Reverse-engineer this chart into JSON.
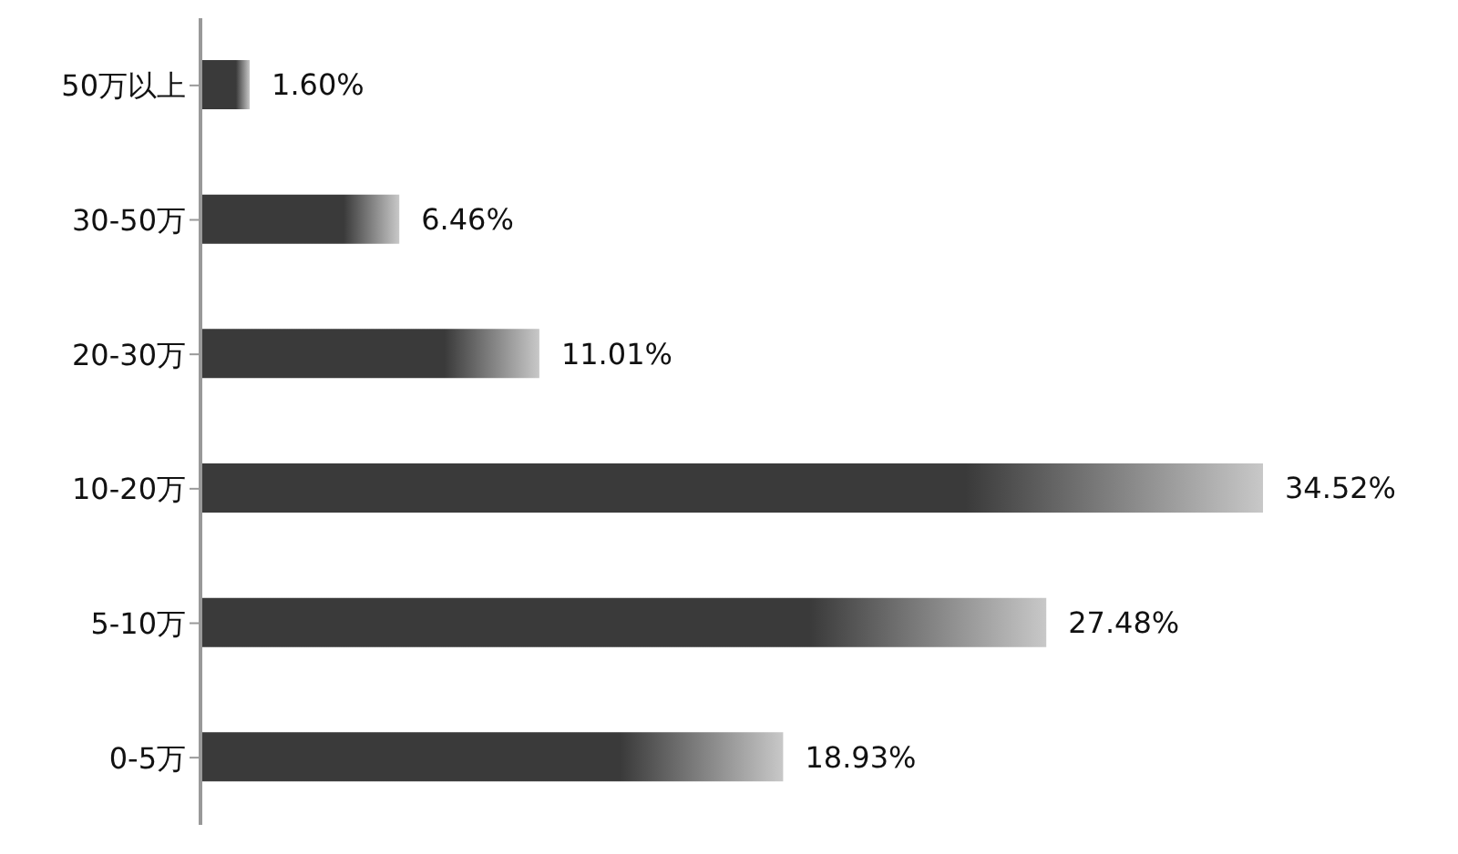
{
  "chart_data": {
    "type": "bar",
    "orientation": "horizontal",
    "categories": [
      "50万以上",
      "30-50万",
      "20-30万",
      "10-20万",
      "5-10万",
      "0-5万"
    ],
    "values": [
      1.6,
      6.46,
      11.01,
      34.52,
      27.48,
      18.93
    ],
    "value_labels": [
      "1.60%",
      "6.46%",
      "11.01%",
      "34.52%",
      "27.48%",
      "18.93%"
    ],
    "color": "#3a3a3a",
    "grid": false,
    "legend": false
  }
}
